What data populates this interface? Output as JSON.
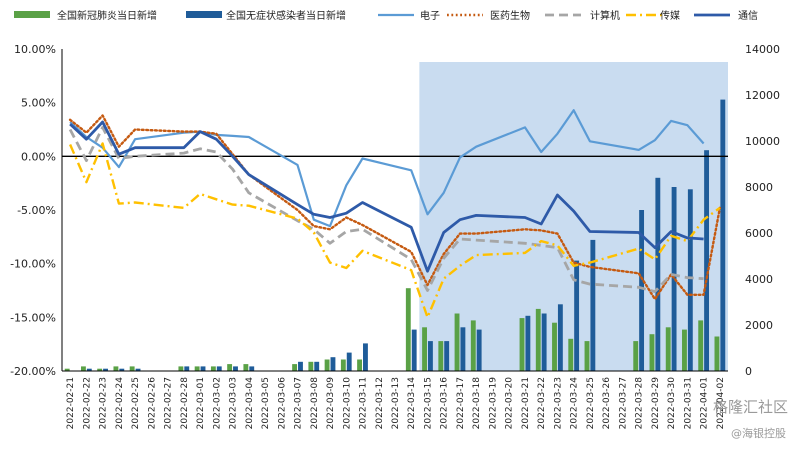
{
  "chart_data": {
    "type": "bar+line",
    "dates": [
      "2022-02-21",
      "2022-02-22",
      "2022-02-23",
      "2022-02-24",
      "2022-02-25",
      "2022-02-26",
      "2022-02-27",
      "2022-02-28",
      "2022-03-01",
      "2022-03-02",
      "2022-03-03",
      "2022-03-04",
      "2022-03-05",
      "2022-03-06",
      "2022-03-07",
      "2022-03-08",
      "2022-03-09",
      "2022-03-10",
      "2022-03-11",
      "2022-03-12",
      "2022-03-13",
      "2022-03-14",
      "2022-03-15",
      "2022-03-16",
      "2022-03-17",
      "2022-03-18",
      "2022-03-19",
      "2022-03-20",
      "2022-03-21",
      "2022-03-22",
      "2022-03-23",
      "2022-03-24",
      "2022-03-25",
      "2022-03-26",
      "2022-03-27",
      "2022-03-28",
      "2022-03-29",
      "2022-03-30",
      "2022-03-31",
      "2022-04-01",
      "2022-04-02"
    ],
    "left_axis": {
      "range": [
        -20,
        10
      ],
      "ticks": [
        "10.00%",
        "5.00%",
        "0.00%",
        "-5.00%",
        "-10.00%",
        "-15.00%",
        "-20.00%"
      ]
    },
    "right_axis": {
      "range": [
        0,
        14000
      ],
      "ticks": [
        "14000",
        "12000",
        "10000",
        "8000",
        "6000",
        "4000",
        "2000",
        "0"
      ]
    },
    "highlight_range": [
      "2022-03-15",
      "2022-04-02"
    ],
    "bar_series": [
      {
        "name": "全国新冠肺炎当日新增",
        "color": "#5aa146",
        "values": [
          100,
          200,
          100,
          200,
          200,
          0,
          0,
          200,
          200,
          200,
          300,
          300,
          0,
          0,
          300,
          400,
          500,
          500,
          500,
          0,
          0,
          3600,
          1900,
          1300,
          2500,
          2200,
          0,
          0,
          2300,
          2700,
          2100,
          1400,
          1300,
          0,
          0,
          1300,
          1600,
          1900,
          1800,
          2200,
          1500
        ]
      },
      {
        "name": "全国无症状感染者当日新增",
        "color": "#1f5c99",
        "values": [
          0,
          100,
          100,
          100,
          100,
          0,
          0,
          200,
          200,
          200,
          200,
          200,
          0,
          0,
          400,
          400,
          600,
          800,
          1200,
          0,
          0,
          1800,
          1300,
          1300,
          1900,
          1800,
          0,
          0,
          2400,
          2500,
          2900,
          4800,
          5700,
          0,
          0,
          7000,
          8400,
          8000,
          7900,
          9600,
          11800
        ]
      }
    ],
    "line_series": [
      {
        "name": "电子",
        "color": "#5b9bd5",
        "style": "solid",
        "values": [
          3.2,
          1.8,
          0.8,
          -1.0,
          1.6,
          null,
          null,
          2.2,
          2.3,
          2.0,
          1.9,
          1.8,
          null,
          null,
          -0.8,
          -5.9,
          -6.5,
          -2.7,
          -0.2,
          null,
          null,
          -1.3,
          -5.4,
          -3.4,
          -0.1,
          0.9,
          null,
          null,
          2.7,
          0.4,
          2.1,
          4.3,
          1.4,
          null,
          null,
          0.6,
          1.5,
          3.3,
          2.9,
          1.2,
          null
        ]
      },
      {
        "name": "医药生物",
        "color": "#c55a11",
        "style": "dotted",
        "values": [
          3.4,
          2.2,
          3.8,
          0.9,
          2.5,
          null,
          null,
          2.3,
          2.3,
          2.1,
          0.2,
          -1.7,
          null,
          null,
          -5.0,
          -6.5,
          -6.8,
          -5.7,
          -6.4,
          null,
          null,
          -8.9,
          -12.0,
          -9.1,
          -7.2,
          -7.2,
          null,
          null,
          -6.8,
          -6.9,
          -7.2,
          -9.9,
          -10.3,
          null,
          null,
          -10.9,
          -13.3,
          -11.0,
          -12.9,
          -12.9,
          -4.8
        ]
      },
      {
        "name": "计算机",
        "color": "#a6a6a6",
        "style": "dashed",
        "values": [
          2.5,
          -0.4,
          2.7,
          -0.2,
          0.0,
          null,
          null,
          0.3,
          0.7,
          0.4,
          -1.2,
          -3.4,
          null,
          null,
          -6.0,
          -6.8,
          -8.1,
          -7.0,
          -6.8,
          null,
          null,
          -9.6,
          -12.5,
          -9.5,
          -7.7,
          -7.8,
          null,
          null,
          -8.1,
          -8.3,
          -8.5,
          -11.5,
          -11.9,
          null,
          null,
          -12.2,
          -12.6,
          -11.0,
          -11.3,
          -11.4,
          null
        ]
      },
      {
        "name": "传媒",
        "color": "#ffc000",
        "style": "dashdot",
        "values": [
          1.1,
          -2.4,
          1.2,
          -4.4,
          -4.3,
          null,
          null,
          -4.8,
          -3.5,
          -4.0,
          -4.5,
          -4.6,
          null,
          null,
          -5.8,
          -7.1,
          -9.9,
          -10.4,
          -8.8,
          null,
          null,
          -10.6,
          -15.0,
          -11.4,
          -10.2,
          -9.2,
          null,
          null,
          -9.0,
          -7.9,
          -8.3,
          -10.2,
          -9.9,
          null,
          null,
          -8.6,
          -9.6,
          -7.4,
          -7.9,
          -5.9,
          -4.8
        ]
      },
      {
        "name": "通信",
        "color": "#2e5aa8",
        "style": "solid-thick",
        "values": [
          3.0,
          1.6,
          3.2,
          0.2,
          0.8,
          null,
          null,
          0.8,
          2.3,
          1.6,
          0.0,
          -1.7,
          null,
          null,
          -4.5,
          -5.4,
          -5.7,
          -5.3,
          -4.3,
          null,
          null,
          -6.6,
          -10.7,
          -7.1,
          -5.9,
          -5.5,
          null,
          null,
          -5.7,
          -6.3,
          -3.6,
          -5.1,
          -7.0,
          null,
          null,
          -7.1,
          -8.5,
          -7.0,
          -7.6,
          -7.7,
          null
        ]
      }
    ]
  },
  "watermark": {
    "line1": "格隆汇社区",
    "line2": "@海银控股"
  }
}
